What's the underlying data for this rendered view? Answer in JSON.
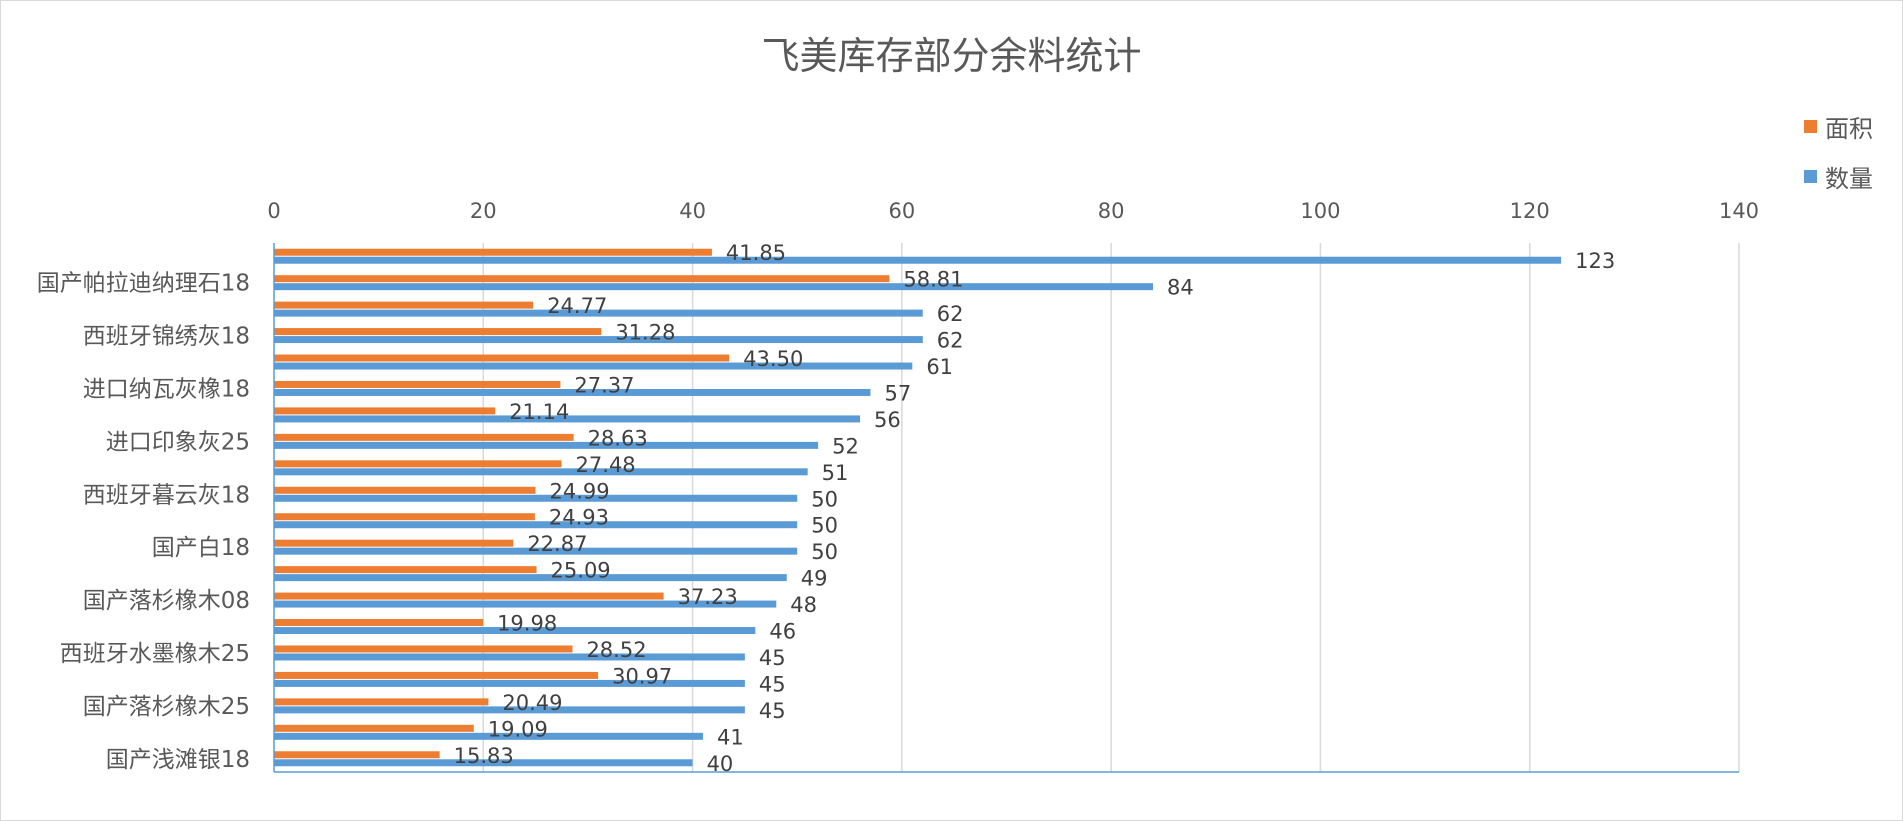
{
  "chart_data": {
    "type": "bar",
    "orientation": "horizontal",
    "title": "飞美库存部分余料统计",
    "xlabel": "",
    "ylabel": "",
    "xlim": [
      0,
      140
    ],
    "ticks": [
      0,
      20,
      40,
      60,
      80,
      100,
      120,
      140
    ],
    "tick_labels": [
      "0",
      "20",
      "40",
      "60",
      "80",
      "100",
      "120",
      "140"
    ],
    "grid": true,
    "legend_position": "top-right",
    "categories": [
      "",
      "国产帕拉迪纳理石18",
      "",
      "西班牙锦绣灰18",
      "",
      "进口纳瓦灰橡18",
      "",
      "进口印象灰25",
      "",
      "西班牙暮云灰18",
      "",
      "国产白18",
      "",
      "国产落杉橡木08",
      "",
      "西班牙水墨橡木25",
      "",
      "国产落杉橡木25",
      "",
      "国产浅滩银18"
    ],
    "series": [
      {
        "name": "面积",
        "color": "#ed7d31",
        "values": [
          41.85,
          58.81,
          24.77,
          31.28,
          43.5,
          27.37,
          21.14,
          28.63,
          27.48,
          24.99,
          24.93,
          22.87,
          25.09,
          37.23,
          19.98,
          28.52,
          30.97,
          20.49,
          19.09,
          15.83
        ],
        "labels": [
          "41.85",
          "58.81",
          "24.77",
          "31.28",
          "43.50",
          "27.37",
          "21.14",
          "28.63",
          "27.48",
          "24.99",
          "24.93",
          "22.87",
          "25.09",
          "37.23",
          "19.98",
          "28.52",
          "30.97",
          "20.49",
          "19.09",
          "15.83"
        ]
      },
      {
        "name": "数量",
        "color": "#5b9bd5",
        "values": [
          123,
          84,
          62,
          62,
          61,
          57,
          56,
          52,
          51,
          50,
          50,
          50,
          49,
          48,
          46,
          45,
          45,
          45,
          41,
          40
        ],
        "labels": [
          "123",
          "84",
          "62",
          "62",
          "61",
          "57",
          "56",
          "52",
          "51",
          "50",
          "50",
          "50",
          "49",
          "48",
          "46",
          "45",
          "45",
          "45",
          "41",
          "40"
        ]
      }
    ]
  }
}
